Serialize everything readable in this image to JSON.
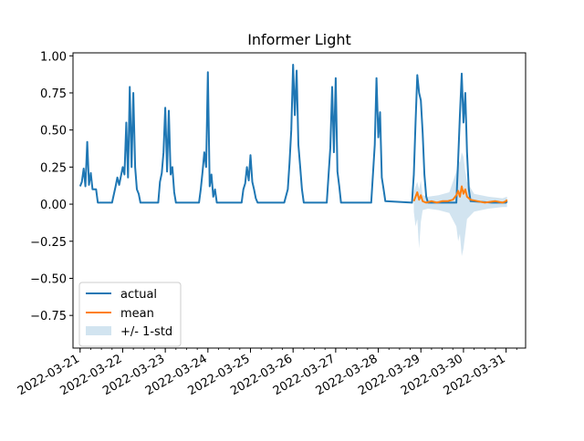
{
  "chart_data": {
    "type": "line",
    "title": "Informer Light",
    "xlabel": "",
    "ylabel": "",
    "ylim": [
      -0.97,
      1.02
    ],
    "xlim": [
      "2022-03-20T20:00",
      "2022-03-31T11:00"
    ],
    "x_ticks": [
      "2022-03-21",
      "2022-03-22",
      "2022-03-23",
      "2022-03-24",
      "2022-03-25",
      "2022-03-26",
      "2022-03-27",
      "2022-03-28",
      "2022-03-29",
      "2022-03-30",
      "2022-03-31"
    ],
    "y_ticks": [
      "1.00",
      "0.75",
      "0.50",
      "0.25",
      "0.00",
      "−0.25",
      "−0.50",
      "−0.75"
    ],
    "y_tick_values": [
      1.0,
      0.75,
      0.5,
      0.25,
      0.0,
      -0.25,
      -0.5,
      -0.75
    ],
    "grid": false,
    "legend_position": "lower-left",
    "series": [
      {
        "name": "actual",
        "color": "#1f77b4",
        "points": [
          [
            "2022-03-21T00:00",
            0.12
          ],
          [
            "2022-03-21T01:00",
            0.15
          ],
          [
            "2022-03-21T02:00",
            0.24
          ],
          [
            "2022-03-21T03:00",
            0.12
          ],
          [
            "2022-03-21T04:00",
            0.42
          ],
          [
            "2022-03-21T05:00",
            0.13
          ],
          [
            "2022-03-21T06:00",
            0.21
          ],
          [
            "2022-03-21T07:00",
            0.1
          ],
          [
            "2022-03-21T09:00",
            0.1
          ],
          [
            "2022-03-21T10:00",
            0.01
          ],
          [
            "2022-03-21T16:00",
            0.01
          ],
          [
            "2022-03-21T18:00",
            0.01
          ],
          [
            "2022-03-21T20:00",
            0.12
          ],
          [
            "2022-03-21T21:00",
            0.18
          ],
          [
            "2022-03-21T22:00",
            0.13
          ],
          [
            "2022-03-22T00:00",
            0.25
          ],
          [
            "2022-03-22T01:00",
            0.2
          ],
          [
            "2022-03-22T02:00",
            0.55
          ],
          [
            "2022-03-22T03:00",
            0.18
          ],
          [
            "2022-03-22T04:00",
            0.79
          ],
          [
            "2022-03-22T05:00",
            0.25
          ],
          [
            "2022-03-22T06:00",
            0.75
          ],
          [
            "2022-03-22T07:00",
            0.25
          ],
          [
            "2022-03-22T08:00",
            0.1
          ],
          [
            "2022-03-22T09:00",
            0.07
          ],
          [
            "2022-03-22T10:00",
            0.01
          ],
          [
            "2022-03-22T20:00",
            0.01
          ],
          [
            "2022-03-22T21:00",
            0.15
          ],
          [
            "2022-03-22T22:00",
            0.21
          ],
          [
            "2022-03-22T23:00",
            0.35
          ],
          [
            "2022-03-23T00:00",
            0.65
          ],
          [
            "2022-03-23T01:00",
            0.22
          ],
          [
            "2022-03-23T02:00",
            0.63
          ],
          [
            "2022-03-23T03:00",
            0.2
          ],
          [
            "2022-03-23T04:00",
            0.25
          ],
          [
            "2022-03-23T05:00",
            0.08
          ],
          [
            "2022-03-23T06:00",
            0.01
          ],
          [
            "2022-03-23T19:00",
            0.01
          ],
          [
            "2022-03-23T20:00",
            0.1
          ],
          [
            "2022-03-23T21:00",
            0.22
          ],
          [
            "2022-03-23T22:00",
            0.35
          ],
          [
            "2022-03-23T23:00",
            0.25
          ],
          [
            "2022-03-24T00:00",
            0.89
          ],
          [
            "2022-03-24T01:00",
            0.12
          ],
          [
            "2022-03-24T02:00",
            0.2
          ],
          [
            "2022-03-24T03:00",
            0.05
          ],
          [
            "2022-03-24T04:00",
            0.1
          ],
          [
            "2022-03-24T05:00",
            0.01
          ],
          [
            "2022-03-24T19:00",
            0.01
          ],
          [
            "2022-03-24T20:00",
            0.1
          ],
          [
            "2022-03-24T21:00",
            0.14
          ],
          [
            "2022-03-24T22:00",
            0.25
          ],
          [
            "2022-03-24T23:00",
            0.16
          ],
          [
            "2022-03-25T00:00",
            0.33
          ],
          [
            "2022-03-25T01:00",
            0.15
          ],
          [
            "2022-03-25T02:00",
            0.1
          ],
          [
            "2022-03-25T03:00",
            0.04
          ],
          [
            "2022-03-25T04:00",
            0.01
          ],
          [
            "2022-03-25T19:00",
            0.01
          ],
          [
            "2022-03-25T21:00",
            0.1
          ],
          [
            "2022-03-25T22:00",
            0.28
          ],
          [
            "2022-03-25T23:00",
            0.5
          ],
          [
            "2022-03-26T00:00",
            0.94
          ],
          [
            "2022-03-26T01:00",
            0.6
          ],
          [
            "2022-03-26T02:00",
            0.9
          ],
          [
            "2022-03-26T03:00",
            0.4
          ],
          [
            "2022-03-26T04:00",
            0.25
          ],
          [
            "2022-03-26T05:00",
            0.1
          ],
          [
            "2022-03-26T06:00",
            0.01
          ],
          [
            "2022-03-26T19:00",
            0.01
          ],
          [
            "2022-03-26T20:00",
            0.2
          ],
          [
            "2022-03-26T21:00",
            0.38
          ],
          [
            "2022-03-26T22:00",
            0.79
          ],
          [
            "2022-03-26T23:00",
            0.35
          ],
          [
            "2022-03-27T00:00",
            0.85
          ],
          [
            "2022-03-27T01:00",
            0.22
          ],
          [
            "2022-03-27T02:00",
            0.12
          ],
          [
            "2022-03-27T03:00",
            0.01
          ],
          [
            "2022-03-27T20:00",
            0.01
          ],
          [
            "2022-03-27T21:00",
            0.2
          ],
          [
            "2022-03-27T22:00",
            0.4
          ],
          [
            "2022-03-27T23:00",
            0.85
          ],
          [
            "2022-03-28T00:00",
            0.45
          ],
          [
            "2022-03-28T01:00",
            0.62
          ],
          [
            "2022-03-28T02:00",
            0.18
          ],
          [
            "2022-03-28T03:00",
            0.1
          ],
          [
            "2022-03-28T04:00",
            0.02
          ],
          [
            "2022-03-28T19:00",
            0.01
          ],
          [
            "2022-03-28T20:00",
            0.2
          ],
          [
            "2022-03-28T21:00",
            0.55
          ],
          [
            "2022-03-28T22:00",
            0.87
          ],
          [
            "2022-03-28T23:00",
            0.75
          ],
          [
            "2022-03-29T00:00",
            0.7
          ],
          [
            "2022-03-29T01:00",
            0.48
          ],
          [
            "2022-03-29T02:00",
            0.2
          ],
          [
            "2022-03-29T03:00",
            0.05
          ],
          [
            "2022-03-29T04:00",
            0.01
          ],
          [
            "2022-03-29T20:00",
            0.01
          ],
          [
            "2022-03-29T21:00",
            0.3
          ],
          [
            "2022-03-29T22:00",
            0.6
          ],
          [
            "2022-03-29T23:00",
            0.88
          ],
          [
            "2022-03-30T00:00",
            0.55
          ],
          [
            "2022-03-30T01:00",
            0.75
          ],
          [
            "2022-03-30T02:00",
            0.35
          ],
          [
            "2022-03-30T03:00",
            0.1
          ],
          [
            "2022-03-30T04:00",
            0.02
          ],
          [
            "2022-03-30T16:00",
            0.01
          ],
          [
            "2022-03-31T00:00",
            0.01
          ],
          [
            "2022-03-31T00:30",
            0.02
          ]
        ]
      },
      {
        "name": "mean",
        "color": "#ff7f0e",
        "points": [
          [
            "2022-03-28T20:00",
            0.02
          ],
          [
            "2022-03-28T21:00",
            0.05
          ],
          [
            "2022-03-28T22:00",
            0.08
          ],
          [
            "2022-03-28T23:00",
            0.03
          ],
          [
            "2022-03-29T00:00",
            0.06
          ],
          [
            "2022-03-29T01:00",
            0.02
          ],
          [
            "2022-03-29T03:00",
            0.01
          ],
          [
            "2022-03-29T06:00",
            0.02
          ],
          [
            "2022-03-29T09:00",
            0.01
          ],
          [
            "2022-03-29T12:00",
            0.02
          ],
          [
            "2022-03-29T15:00",
            0.02
          ],
          [
            "2022-03-29T18:00",
            0.03
          ],
          [
            "2022-03-29T20:00",
            0.06
          ],
          [
            "2022-03-29T21:00",
            0.09
          ],
          [
            "2022-03-29T22:00",
            0.05
          ],
          [
            "2022-03-29T23:00",
            0.12
          ],
          [
            "2022-03-30T00:00",
            0.07
          ],
          [
            "2022-03-30T01:00",
            0.1
          ],
          [
            "2022-03-30T02:00",
            0.05
          ],
          [
            "2022-03-30T04:00",
            0.03
          ],
          [
            "2022-03-30T08:00",
            0.02
          ],
          [
            "2022-03-30T12:00",
            0.01
          ],
          [
            "2022-03-30T18:00",
            0.02
          ],
          [
            "2022-03-30T22:00",
            0.01
          ],
          [
            "2022-03-31T00:00",
            0.02
          ],
          [
            "2022-03-31T00:30",
            0.03
          ]
        ]
      }
    ],
    "band": {
      "name": "+/- 1-std",
      "color": "#1f77b4",
      "opacity": 0.2,
      "points": [
        [
          "2022-03-28T20:00",
          -0.05,
          0.08
        ],
        [
          "2022-03-28T21:00",
          -0.15,
          0.12
        ],
        [
          "2022-03-28T22:00",
          -0.1,
          0.15
        ],
        [
          "2022-03-28T23:00",
          -0.3,
          0.1
        ],
        [
          "2022-03-29T00:00",
          -0.12,
          0.16
        ],
        [
          "2022-03-29T01:00",
          -0.04,
          0.06
        ],
        [
          "2022-03-29T04:00",
          -0.03,
          0.05
        ],
        [
          "2022-03-29T10:00",
          -0.04,
          0.06
        ],
        [
          "2022-03-29T16:00",
          -0.06,
          0.08
        ],
        [
          "2022-03-29T20:00",
          -0.15,
          0.22
        ],
        [
          "2022-03-29T21:00",
          -0.25,
          0.3
        ],
        [
          "2022-03-29T22:00",
          -0.2,
          0.28
        ],
        [
          "2022-03-29T23:00",
          -0.35,
          0.35
        ],
        [
          "2022-03-30T00:00",
          -0.3,
          0.32
        ],
        [
          "2022-03-30T01:00",
          -0.2,
          0.22
        ],
        [
          "2022-03-30T02:00",
          -0.1,
          0.15
        ],
        [
          "2022-03-30T06:00",
          -0.05,
          0.07
        ],
        [
          "2022-03-30T14:00",
          -0.03,
          0.05
        ],
        [
          "2022-03-30T22:00",
          -0.02,
          0.04
        ],
        [
          "2022-03-31T00:30",
          -0.02,
          0.05
        ]
      ]
    },
    "legend": [
      "actual",
      "mean",
      "+/- 1-std"
    ]
  }
}
